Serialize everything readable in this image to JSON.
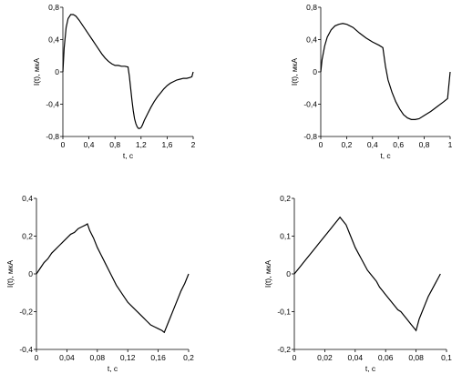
{
  "chart_data": [
    {
      "type": "line",
      "xlabel": "t, c",
      "ylabel": "I(t), мкА",
      "xlim": [
        0,
        2
      ],
      "ylim": [
        -0.8,
        0.8
      ],
      "xticks": [
        0,
        0.4,
        0.8,
        1.2,
        1.6,
        2
      ],
      "xtick_labels": [
        "0",
        "0,4",
        "0,8",
        "1,2",
        "1,6",
        "2"
      ],
      "yticks": [
        -0.8,
        -0.4,
        0,
        0.4,
        0.8
      ],
      "ytick_labels": [
        "-0,8",
        "-0,4",
        "0",
        "0,4",
        "0,8"
      ],
      "grid": false,
      "series": [
        {
          "x": [
            0,
            0.02,
            0.05,
            0.08,
            0.12,
            0.16,
            0.2,
            0.25,
            0.3,
            0.35,
            0.4,
            0.45,
            0.5,
            0.55,
            0.6,
            0.65,
            0.7,
            0.75,
            0.8,
            0.85,
            0.9,
            0.95,
            1.0,
            1.02,
            1.04,
            1.06,
            1.08,
            1.1,
            1.12,
            1.14,
            1.16,
            1.18,
            1.2,
            1.22,
            1.25,
            1.3,
            1.35,
            1.4,
            1.45,
            1.5,
            1.55,
            1.6,
            1.65,
            1.7,
            1.75,
            1.8,
            1.85,
            1.9,
            1.95,
            1.98,
            2.0
          ],
          "y": [
            0,
            0.3,
            0.55,
            0.66,
            0.71,
            0.71,
            0.69,
            0.64,
            0.58,
            0.52,
            0.46,
            0.4,
            0.34,
            0.28,
            0.22,
            0.17,
            0.13,
            0.1,
            0.08,
            0.08,
            0.07,
            0.07,
            0.06,
            -0.05,
            -0.2,
            -0.35,
            -0.48,
            -0.58,
            -0.64,
            -0.68,
            -0.7,
            -0.7,
            -0.69,
            -0.66,
            -0.6,
            -0.52,
            -0.44,
            -0.37,
            -0.31,
            -0.26,
            -0.21,
            -0.17,
            -0.14,
            -0.12,
            -0.1,
            -0.09,
            -0.08,
            -0.08,
            -0.07,
            -0.06,
            0
          ]
        }
      ]
    },
    {
      "type": "line",
      "xlabel": "t, c",
      "ylabel": "I(t), мкА",
      "xlim": [
        0,
        1
      ],
      "ylim": [
        -0.8,
        0.8
      ],
      "xticks": [
        0,
        0.2,
        0.4,
        0.6,
        0.8,
        1
      ],
      "xtick_labels": [
        "0",
        "0,2",
        "0,4",
        "0,6",
        "0,8",
        "1"
      ],
      "yticks": [
        -0.8,
        -0.4,
        0,
        0.4,
        0.8
      ],
      "ytick_labels": [
        "-0,8",
        "-0,4",
        "0",
        "0,4",
        "0,8"
      ],
      "grid": false,
      "series": [
        {
          "x": [
            0,
            0.01,
            0.03,
            0.05,
            0.08,
            0.11,
            0.14,
            0.17,
            0.2,
            0.25,
            0.3,
            0.35,
            0.4,
            0.45,
            0.48,
            0.5,
            0.52,
            0.55,
            0.58,
            0.61,
            0.64,
            0.67,
            0.7,
            0.73,
            0.76,
            0.8,
            0.85,
            0.9,
            0.95,
            0.98,
            1.0
          ],
          "y": [
            0,
            0.15,
            0.32,
            0.43,
            0.52,
            0.57,
            0.59,
            0.6,
            0.59,
            0.55,
            0.48,
            0.42,
            0.37,
            0.33,
            0.3,
            0.07,
            -0.1,
            -0.25,
            -0.37,
            -0.46,
            -0.53,
            -0.57,
            -0.59,
            -0.59,
            -0.58,
            -0.54,
            -0.49,
            -0.43,
            -0.37,
            -0.33,
            0
          ]
        }
      ]
    },
    {
      "type": "line",
      "xlabel": "t, c",
      "ylabel": "I(t), мкА",
      "xlim": [
        0,
        0.2
      ],
      "ylim": [
        -0.4,
        0.4
      ],
      "xticks": [
        0,
        0.04,
        0.08,
        0.12,
        0.16,
        0.2
      ],
      "xtick_labels": [
        "0",
        "0,04",
        "0,08",
        "0,12",
        "0,16",
        "0,2"
      ],
      "yticks": [
        -0.4,
        -0.2,
        0,
        0.2,
        0.4
      ],
      "ytick_labels": [
        "-0,4",
        "-0,2",
        "0",
        "0,2",
        "0,4"
      ],
      "grid": false,
      "series": [
        {
          "x": [
            0,
            0.005,
            0.01,
            0.015,
            0.02,
            0.025,
            0.03,
            0.035,
            0.04,
            0.045,
            0.05,
            0.055,
            0.06,
            0.065,
            0.067,
            0.07,
            0.075,
            0.08,
            0.085,
            0.09,
            0.095,
            0.1,
            0.105,
            0.11,
            0.115,
            0.12,
            0.125,
            0.13,
            0.135,
            0.14,
            0.145,
            0.15,
            0.155,
            0.16,
            0.165,
            0.168,
            0.172,
            0.176,
            0.18,
            0.185,
            0.19,
            0.195,
            0.2
          ],
          "y": [
            0,
            0.03,
            0.06,
            0.08,
            0.11,
            0.13,
            0.15,
            0.17,
            0.19,
            0.21,
            0.22,
            0.24,
            0.25,
            0.26,
            0.265,
            0.23,
            0.19,
            0.14,
            0.1,
            0.06,
            0.02,
            -0.02,
            -0.06,
            -0.09,
            -0.12,
            -0.15,
            -0.17,
            -0.19,
            -0.21,
            -0.23,
            -0.25,
            -0.27,
            -0.28,
            -0.29,
            -0.3,
            -0.31,
            -0.27,
            -0.23,
            -0.19,
            -0.14,
            -0.09,
            -0.05,
            0
          ]
        }
      ]
    },
    {
      "type": "line",
      "xlabel": "t, c",
      "ylabel": "I(t), мкА",
      "xlim": [
        0,
        0.1
      ],
      "ylim": [
        -0.2,
        0.2
      ],
      "xticks": [
        0,
        0.02,
        0.04,
        0.06,
        0.08,
        0.1
      ],
      "xtick_labels": [
        "0",
        "0,02",
        "0,04",
        "0,06",
        "0,08",
        "0,1"
      ],
      "yticks": [
        -0.2,
        -0.1,
        0,
        0.1,
        0.2
      ],
      "ytick_labels": [
        "-0,2",
        "-0,1",
        "0",
        "0,1",
        "0,2"
      ],
      "grid": false,
      "series": [
        {
          "x": [
            0,
            0.002,
            0.004,
            0.006,
            0.008,
            0.01,
            0.012,
            0.014,
            0.016,
            0.018,
            0.02,
            0.022,
            0.024,
            0.026,
            0.028,
            0.03,
            0.032,
            0.034,
            0.036,
            0.038,
            0.04,
            0.042,
            0.044,
            0.046,
            0.048,
            0.05,
            0.052,
            0.054,
            0.056,
            0.058,
            0.06,
            0.062,
            0.064,
            0.066,
            0.068,
            0.07,
            0.072,
            0.074,
            0.076,
            0.078,
            0.08,
            0.082,
            0.084,
            0.086,
            0.088,
            0.09,
            0.092,
            0.094,
            0.096
          ],
          "y": [
            0,
            0.01,
            0.02,
            0.03,
            0.04,
            0.05,
            0.06,
            0.07,
            0.08,
            0.09,
            0.1,
            0.11,
            0.12,
            0.13,
            0.14,
            0.15,
            0.14,
            0.13,
            0.11,
            0.09,
            0.07,
            0.055,
            0.04,
            0.025,
            0.01,
            0,
            -0.01,
            -0.02,
            -0.035,
            -0.045,
            -0.055,
            -0.065,
            -0.075,
            -0.085,
            -0.095,
            -0.1,
            -0.11,
            -0.12,
            -0.13,
            -0.14,
            -0.15,
            -0.12,
            -0.1,
            -0.08,
            -0.06,
            -0.045,
            -0.03,
            -0.015,
            0
          ]
        }
      ]
    }
  ]
}
